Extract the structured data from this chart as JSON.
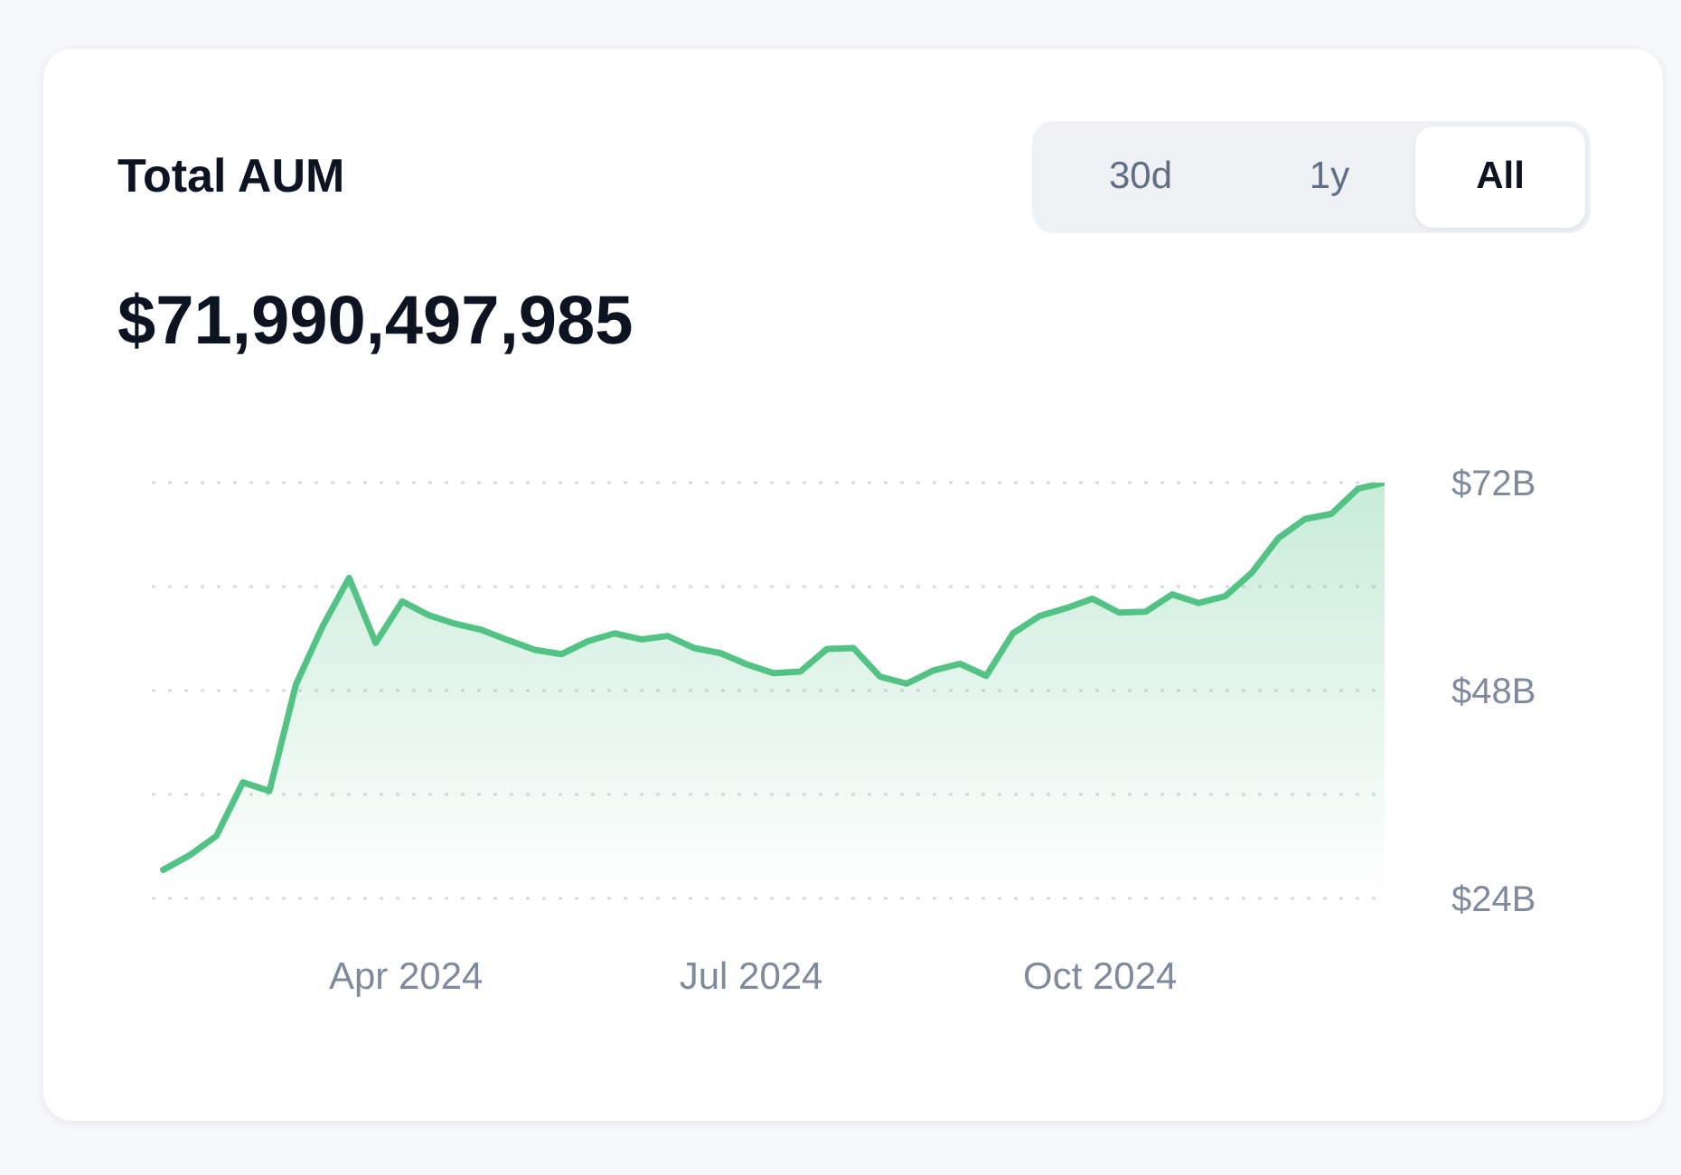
{
  "chart_data": {
    "type": "area",
    "title": "Total AUM",
    "subtitle": "$71,990,497,985",
    "annotations": [
      "30d",
      "1y",
      "All"
    ],
    "x": [
      "2024-01-28",
      "2024-02-04",
      "2024-02-11",
      "2024-02-18",
      "2024-02-25",
      "2024-03-03",
      "2024-03-10",
      "2024-03-17",
      "2024-03-24",
      "2024-03-31",
      "2024-04-07",
      "2024-04-14",
      "2024-04-21",
      "2024-04-28",
      "2024-05-05",
      "2024-05-12",
      "2024-05-19",
      "2024-05-26",
      "2024-06-02",
      "2024-06-09",
      "2024-06-16",
      "2024-06-23",
      "2024-06-30",
      "2024-07-07",
      "2024-07-14",
      "2024-07-21",
      "2024-07-28",
      "2024-08-04",
      "2024-08-11",
      "2024-08-18",
      "2024-08-25",
      "2024-09-01",
      "2024-09-08",
      "2024-09-15",
      "2024-09-22",
      "2024-09-29",
      "2024-10-06",
      "2024-10-13",
      "2024-10-20",
      "2024-10-27",
      "2024-11-03",
      "2024-11-10",
      "2024-11-17",
      "2024-11-24",
      "2024-12-01",
      "2024-12-08",
      "2024-12-15"
    ],
    "values": [
      27.3,
      29.0,
      31.2,
      37.4,
      36.4,
      48.7,
      55.4,
      61.0,
      53.5,
      58.3,
      56.7,
      55.7,
      55.0,
      53.8,
      52.7,
      52.2,
      53.7,
      54.6,
      53.9,
      54.3,
      52.9,
      52.3,
      51.0,
      50.0,
      50.2,
      52.8,
      52.9,
      49.6,
      48.8,
      50.3,
      51.1,
      49.7,
      54.6,
      56.6,
      57.5,
      58.6,
      57.0,
      57.1,
      59.1,
      58.1,
      58.9,
      61.6,
      65.6,
      67.8,
      68.4,
      71.3,
      72.0
    ],
    "color": "#53c285",
    "xlim": [
      "2024-01-25",
      "2024-12-15"
    ],
    "xticks": [
      {
        "value": "2024-04-01",
        "label": "Apr 2024"
      },
      {
        "value": "2024-07-01",
        "label": "Jul 2024"
      },
      {
        "value": "2024-10-01",
        "label": "Oct 2024"
      }
    ],
    "ylim": [
      24,
      72
    ],
    "yticks": [
      {
        "value": 24,
        "label": "$24B"
      },
      {
        "value": 36,
        "label": null
      },
      {
        "value": 48,
        "label": "$48B"
      },
      {
        "value": 60,
        "label": null
      },
      {
        "value": 72,
        "label": "$72B"
      }
    ],
    "grid": "y"
  }
}
